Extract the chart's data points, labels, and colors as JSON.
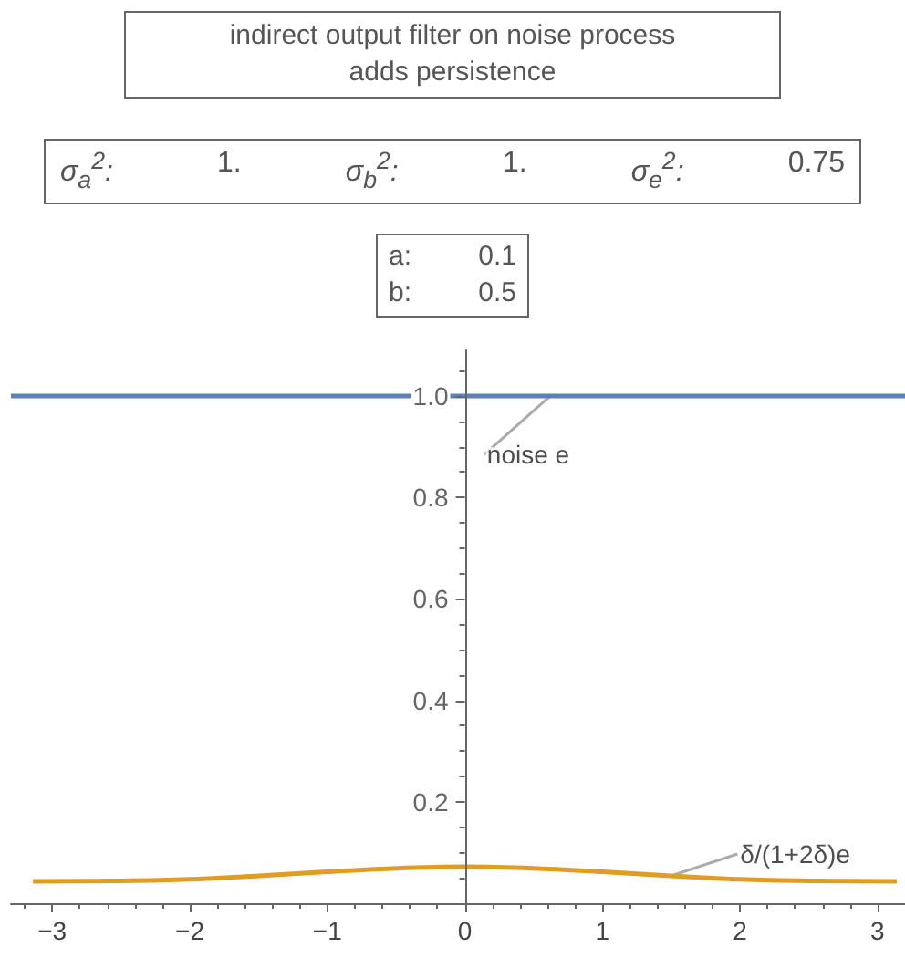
{
  "chart_data": {
    "type": "line",
    "title": "indirect output filter on noise process\nadds persistence",
    "subtitle": [
      "σ$_{a}$$^{2}$: 1.",
      "σ$_{b}$$^{2}$: 1.",
      "σ$_{e}$$^{2}$: 0.75"
    ],
    "annotations": [
      "a: 0.1",
      "b: 0.5",
      {
        "text": "noise e",
        "x": 0.62,
        "y": 1.0
      },
      {
        "text": "δ/(1+2δ)e",
        "x": 1.5,
        "y": 0.054
      }
    ],
    "series": [
      {
        "color": "#5e81b5",
        "x": [
          -3.3,
          3.2
        ],
        "values": [
          1.0,
          1.0
        ]
      },
      {
        "color": "#e19c24",
        "x": [
          -3.14,
          -2.5,
          -2,
          -1.5,
          -1,
          -0.5,
          0,
          0.5,
          1,
          1.5,
          2,
          2.5,
          3.14
        ],
        "values": [
          0.043,
          0.044,
          0.047,
          0.054,
          0.062,
          0.069,
          0.072,
          0.069,
          0.062,
          0.054,
          0.047,
          0.044,
          0.043
        ]
      }
    ],
    "xlim": [
      -3.3,
      3.2
    ],
    "xticks": [
      -3,
      -2,
      -1,
      0,
      1,
      2,
      3
    ],
    "ylim": [
      0,
      1.09
    ],
    "yticks": [
      0.2,
      0.4,
      0.6,
      0.8,
      {
        "value": 1.0,
        "label": "1.0"
      }
    ],
    "grid": false,
    "marker": "none",
    "line_style": "solid"
  }
}
